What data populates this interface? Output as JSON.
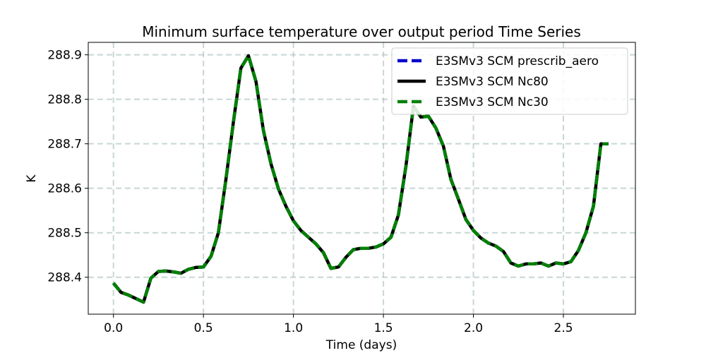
{
  "chart_data": {
    "type": "line",
    "title": "Minimum surface temperature over output period Time Series",
    "xlabel": "Time (days)",
    "ylabel": "K",
    "xlim": [
      -0.14,
      2.9
    ],
    "ylim": [
      288.317,
      288.928
    ],
    "xticks": [
      0.0,
      0.5,
      1.0,
      1.5,
      2.0,
      2.5
    ],
    "xtick_labels": [
      "0.0",
      "0.5",
      "1.0",
      "1.5",
      "2.0",
      "2.5"
    ],
    "yticks": [
      288.4,
      288.5,
      288.6,
      288.7,
      288.8,
      288.9
    ],
    "ytick_labels": [
      "288.4",
      "288.5",
      "288.6",
      "288.7",
      "288.8",
      "288.9"
    ],
    "grid": true,
    "legend_position": "top-right",
    "x": [
      0.0,
      0.042,
      0.083,
      0.125,
      0.167,
      0.208,
      0.25,
      0.292,
      0.333,
      0.375,
      0.417,
      0.458,
      0.5,
      0.542,
      0.583,
      0.625,
      0.667,
      0.708,
      0.75,
      0.792,
      0.833,
      0.875,
      0.917,
      0.958,
      1.0,
      1.042,
      1.083,
      1.125,
      1.167,
      1.208,
      1.25,
      1.292,
      1.333,
      1.375,
      1.417,
      1.458,
      1.5,
      1.542,
      1.583,
      1.625,
      1.667,
      1.708,
      1.75,
      1.792,
      1.833,
      1.875,
      1.917,
      1.958,
      2.0,
      2.042,
      2.083,
      2.125,
      2.167,
      2.208,
      2.25,
      2.292,
      2.333,
      2.375,
      2.417,
      2.458,
      2.5,
      2.542,
      2.583,
      2.625,
      2.667,
      2.708,
      2.75
    ],
    "series": [
      {
        "name": "E3SMv3 SCM prescrib_aero",
        "color": "#0000cc",
        "style": "dashed",
        "values": [
          288.387,
          288.366,
          288.36,
          288.352,
          288.344,
          288.398,
          288.413,
          288.414,
          288.412,
          288.409,
          288.418,
          288.422,
          288.423,
          288.447,
          288.5,
          288.62,
          288.75,
          288.87,
          288.898,
          288.84,
          288.73,
          288.655,
          288.598,
          288.56,
          288.527,
          288.505,
          288.49,
          288.475,
          288.455,
          288.42,
          288.423,
          288.445,
          288.462,
          288.465,
          288.465,
          288.468,
          288.475,
          288.49,
          288.54,
          288.65,
          288.785,
          288.76,
          288.762,
          288.735,
          288.695,
          288.62,
          288.575,
          288.53,
          288.505,
          288.488,
          288.477,
          288.47,
          288.458,
          288.432,
          288.425,
          288.43,
          288.43,
          288.432,
          288.425,
          288.432,
          288.43,
          288.435,
          288.46,
          288.5,
          288.56,
          288.7,
          288.7
        ]
      },
      {
        "name": "E3SMv3 SCM Nc80",
        "color": "#000000",
        "style": "solid",
        "values": [
          288.387,
          288.366,
          288.36,
          288.352,
          288.344,
          288.398,
          288.413,
          288.414,
          288.412,
          288.409,
          288.418,
          288.422,
          288.423,
          288.447,
          288.5,
          288.62,
          288.75,
          288.87,
          288.898,
          288.84,
          288.73,
          288.655,
          288.598,
          288.56,
          288.527,
          288.505,
          288.49,
          288.475,
          288.455,
          288.42,
          288.423,
          288.445,
          288.462,
          288.465,
          288.465,
          288.468,
          288.475,
          288.49,
          288.54,
          288.65,
          288.785,
          288.76,
          288.762,
          288.735,
          288.695,
          288.62,
          288.575,
          288.53,
          288.505,
          288.488,
          288.477,
          288.47,
          288.458,
          288.432,
          288.425,
          288.43,
          288.43,
          288.432,
          288.425,
          288.432,
          288.43,
          288.435,
          288.46,
          288.5,
          288.56,
          288.7,
          288.7
        ]
      },
      {
        "name": "E3SMv3 SCM Nc30",
        "color": "#008000",
        "style": "dashed",
        "values": [
          288.387,
          288.366,
          288.36,
          288.352,
          288.344,
          288.398,
          288.413,
          288.414,
          288.412,
          288.409,
          288.418,
          288.422,
          288.423,
          288.447,
          288.5,
          288.62,
          288.75,
          288.87,
          288.898,
          288.84,
          288.73,
          288.655,
          288.598,
          288.56,
          288.527,
          288.505,
          288.49,
          288.475,
          288.455,
          288.42,
          288.423,
          288.445,
          288.462,
          288.465,
          288.465,
          288.468,
          288.475,
          288.49,
          288.54,
          288.65,
          288.785,
          288.76,
          288.762,
          288.735,
          288.695,
          288.62,
          288.575,
          288.53,
          288.505,
          288.488,
          288.477,
          288.47,
          288.458,
          288.432,
          288.425,
          288.43,
          288.43,
          288.432,
          288.425,
          288.432,
          288.43,
          288.435,
          288.46,
          288.5,
          288.56,
          288.7,
          288.7
        ]
      }
    ]
  }
}
